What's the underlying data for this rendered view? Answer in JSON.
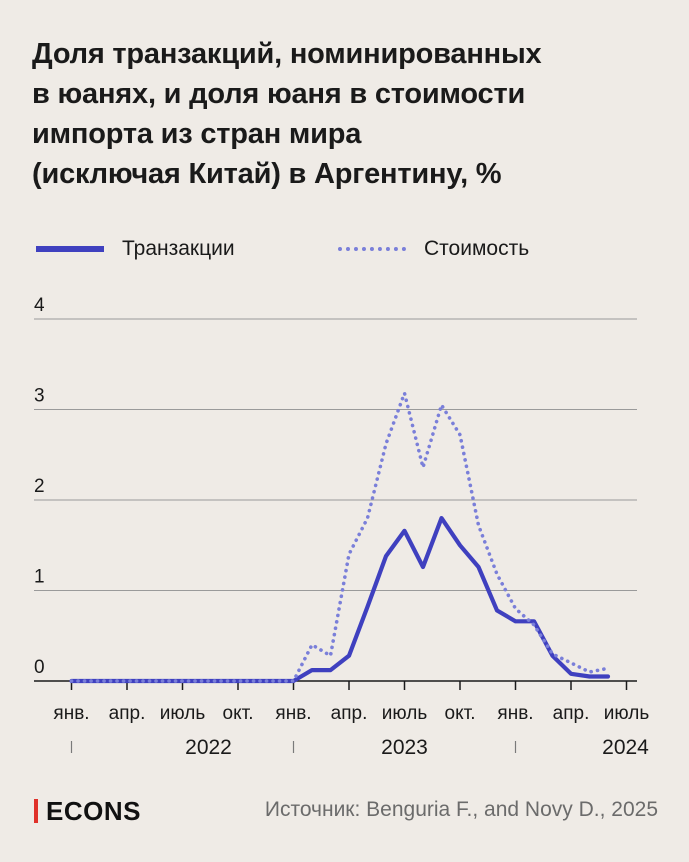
{
  "title_lines": [
    "Доля транзакций, номинированных",
    "в юанях, и доля юаня в стоимости",
    "импорта из стран мира",
    "(исключая Китай) в Аргентину, %"
  ],
  "legend": {
    "solid": "Транзакции",
    "dotted": "Стоимость"
  },
  "footer": {
    "logo": "ECONS",
    "source": "Источник: Benguria F., and Novy D., 2025"
  },
  "colors": {
    "series_solid": "#3f40bf",
    "series_dotted": "#7a7fd9",
    "grid": "#9a9a9a",
    "logo_accent": "#e0312a"
  },
  "chart_data": {
    "type": "line",
    "x_tick_labels": [
      "янв.",
      "апр.",
      "июль",
      "окт.",
      "янв.",
      "апр.",
      "июль",
      "окт.",
      "янв.",
      "апр.",
      "июль"
    ],
    "year_labels": [
      "2022",
      "2023",
      "2024"
    ],
    "x": [
      "2022-01",
      "2022-02",
      "2022-03",
      "2022-04",
      "2022-05",
      "2022-06",
      "2022-07",
      "2022-08",
      "2022-09",
      "2022-10",
      "2022-11",
      "2022-12",
      "2023-01",
      "2023-02",
      "2023-03",
      "2023-04",
      "2023-05",
      "2023-06",
      "2023-07",
      "2023-08",
      "2023-09",
      "2023-10",
      "2023-11",
      "2023-12",
      "2024-01",
      "2024-02",
      "2024-03",
      "2024-04",
      "2024-05",
      "2024-06",
      "2024-07"
    ],
    "ylim": [
      0,
      4
    ],
    "y_ticks": [
      0,
      1,
      2,
      3,
      4
    ],
    "grid": true,
    "legend_position": "top-left",
    "series": [
      {
        "name": "Транзакции",
        "style": "solid",
        "values": [
          0,
          0,
          0,
          0,
          0,
          0,
          0,
          0,
          0,
          0,
          0,
          0,
          0,
          0.12,
          0.12,
          0.28,
          0.82,
          1.38,
          1.66,
          1.26,
          1.8,
          1.5,
          1.26,
          0.78,
          0.66,
          0.66,
          0.28,
          0.08,
          0.05,
          0.05,
          null
        ]
      },
      {
        "name": "Стоимость",
        "style": "dotted",
        "values": [
          0,
          0,
          0,
          0,
          0,
          0,
          0,
          0,
          0,
          0,
          0,
          0,
          0,
          0.4,
          0.28,
          1.4,
          1.8,
          2.62,
          3.18,
          2.36,
          3.05,
          2.72,
          1.72,
          1.18,
          0.8,
          0.62,
          0.3,
          0.2,
          0.1,
          0.14,
          null
        ]
      }
    ]
  }
}
